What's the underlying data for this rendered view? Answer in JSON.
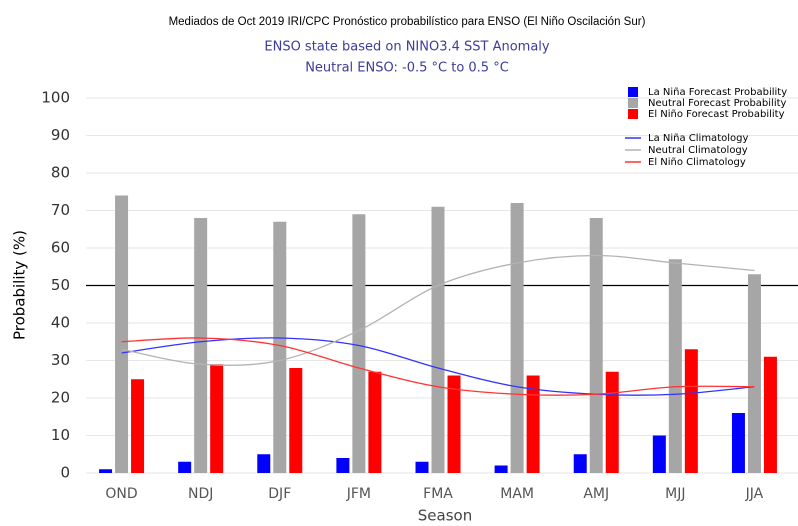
{
  "chart_data": {
    "type": "bar",
    "title": "Mediados de Oct 2019 IRI/CPC Pronóstico probabilístico para ENSO (El Niño Oscilación Sur)",
    "subtitle": [
      "ENSO state based on NINO3.4 SST Anomaly",
      "Neutral ENSO: -0.5 °C to 0.5 °C"
    ],
    "x_label": "Season",
    "y_label": "Probability (%)",
    "categories": [
      "OND",
      "NDJ",
      "DJF",
      "JFM",
      "FMA",
      "MAM",
      "AMJ",
      "MJJ",
      "JJA"
    ],
    "series": [
      {
        "name": "La Niña Forecast Probability",
        "kind": "bar",
        "color": "#0000ff",
        "values": [
          1,
          3,
          5,
          4,
          3,
          2,
          5,
          10,
          16
        ]
      },
      {
        "name": "Neutral Forecast Probability",
        "kind": "bar",
        "color": "#a6a6a6",
        "values": [
          74,
          68,
          67,
          69,
          71,
          72,
          68,
          57,
          53
        ]
      },
      {
        "name": "El Niño Forecast Probability",
        "kind": "bar",
        "color": "#ff0000",
        "values": [
          25,
          29,
          28,
          27,
          26,
          26,
          27,
          33,
          31
        ]
      },
      {
        "name": "La Niña Climatology",
        "kind": "line",
        "color": "#3333ff",
        "values": [
          32,
          35,
          36,
          34,
          28,
          23,
          21,
          21,
          23
        ]
      },
      {
        "name": "Neutral Climatology",
        "kind": "line",
        "color": "#b3b3b3",
        "values": [
          33,
          29,
          30,
          38,
          50,
          56,
          58,
          56,
          54
        ]
      },
      {
        "name": "El Niño Climatology",
        "kind": "line",
        "color": "#ff3333",
        "values": [
          35,
          36,
          34,
          28,
          23,
          21,
          21,
          23,
          23
        ]
      }
    ],
    "reference_line": 50,
    "ylim": [
      0,
      100
    ],
    "yticks": [
      0,
      10,
      20,
      30,
      40,
      50,
      60,
      70,
      80,
      90,
      100
    ],
    "grid": true,
    "legend": "top-right"
  }
}
